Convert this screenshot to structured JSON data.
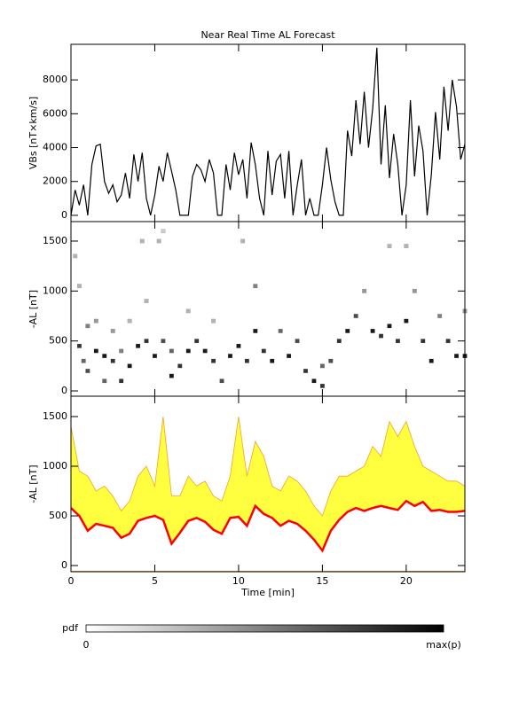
{
  "chart_data": [
    {
      "type": "line",
      "title": "Near Real Time AL Forecast",
      "y_label": "VBs [nT×km/s]",
      "xlim": [
        0,
        23.5
      ],
      "ylim": [
        -370,
        10100
      ],
      "xticks": [
        0,
        5,
        10,
        15,
        20
      ],
      "yticks": [
        0,
        2000,
        4000,
        6000,
        8000
      ],
      "show_xtick_labels": false,
      "x": [
        0,
        0.25,
        0.5,
        0.75,
        1,
        1.25,
        1.5,
        1.75,
        2,
        2.25,
        2.5,
        2.75,
        3,
        3.25,
        3.5,
        3.75,
        4,
        4.25,
        4.5,
        4.75,
        5,
        5.25,
        5.5,
        5.75,
        6,
        6.25,
        6.5,
        6.75,
        7,
        7.25,
        7.5,
        7.75,
        8,
        8.25,
        8.5,
        8.75,
        9,
        9.25,
        9.5,
        9.75,
        10,
        10.25,
        10.5,
        10.75,
        11,
        11.25,
        11.5,
        11.75,
        12,
        12.25,
        12.5,
        12.75,
        13,
        13.25,
        13.5,
        13.75,
        14,
        14.25,
        14.5,
        14.75,
        15,
        15.25,
        15.5,
        15.75,
        16,
        16.25,
        16.5,
        16.75,
        17,
        17.25,
        17.5,
        17.75,
        18,
        18.25,
        18.5,
        18.75,
        19,
        19.25,
        19.5,
        19.75,
        20,
        20.25,
        20.5,
        20.75,
        21,
        21.25,
        21.5,
        21.75,
        22,
        22.25,
        22.5,
        22.75,
        23,
        23.25,
        23.5
      ],
      "series": [
        {
          "color": "#000000",
          "values": [
            0,
            1500,
            600,
            1800,
            0,
            3000,
            4100,
            4200,
            2000,
            1300,
            1800,
            800,
            1200,
            2500,
            1000,
            3600,
            2000,
            3700,
            1000,
            0,
            1200,
            2900,
            2000,
            3700,
            2600,
            1500,
            0,
            0,
            0,
            2300,
            3000,
            2700,
            2000,
            3300,
            2500,
            0,
            0,
            3000,
            1500,
            3700,
            2400,
            3300,
            1000,
            4300,
            3000,
            1000,
            0,
            3800,
            1200,
            3200,
            3600,
            1000,
            3800,
            0,
            1800,
            3300,
            0,
            1000,
            0,
            0,
            1800,
            4000,
            2100,
            800,
            0,
            0,
            5000,
            3500,
            6800,
            4200,
            7300,
            4000,
            6300,
            9900,
            3000,
            6500,
            2200,
            4800,
            3000,
            0,
            1800,
            6800,
            2300,
            5300,
            3800,
            0,
            2400,
            6100,
            3300,
            7600,
            5000,
            8000,
            6400,
            3300,
            4200
          ]
        }
      ]
    },
    {
      "type": "heatmap",
      "y_label": "-AL [nT]",
      "xlim": [
        0,
        23.5
      ],
      "ylim": [
        -53,
        1695
      ],
      "xticks": [
        0,
        5,
        10,
        15,
        20
      ],
      "yticks": [
        0,
        500,
        1000,
        1500
      ],
      "show_xtick_labels": false,
      "color": "#000000",
      "points": [
        [
          0.25,
          1350,
          0.3
        ],
        [
          0.5,
          1050,
          0.3
        ],
        [
          0.5,
          450,
          0.8
        ],
        [
          0.75,
          300,
          0.6
        ],
        [
          1,
          650,
          0.5
        ],
        [
          1,
          200,
          0.7
        ],
        [
          1.5,
          400,
          0.9
        ],
        [
          1.5,
          700,
          0.4
        ],
        [
          2,
          350,
          0.9
        ],
        [
          2,
          100,
          0.6
        ],
        [
          2.5,
          300,
          0.8
        ],
        [
          2.5,
          600,
          0.4
        ],
        [
          3,
          100,
          0.8
        ],
        [
          3,
          400,
          0.5
        ],
        [
          3.5,
          250,
          0.9
        ],
        [
          3.5,
          700,
          0.3
        ],
        [
          4,
          450,
          0.9
        ],
        [
          4.25,
          1500,
          0.3
        ],
        [
          4.5,
          500,
          0.8
        ],
        [
          4.5,
          900,
          0.3
        ],
        [
          5,
          350,
          0.9
        ],
        [
          5.25,
          1500,
          0.3
        ],
        [
          5.5,
          1600,
          0.2
        ],
        [
          5.5,
          500,
          0.7
        ],
        [
          6,
          150,
          0.9
        ],
        [
          6,
          400,
          0.6
        ],
        [
          6.5,
          250,
          0.8
        ],
        [
          7,
          400,
          0.9
        ],
        [
          7,
          800,
          0.3
        ],
        [
          7.5,
          500,
          0.8
        ],
        [
          8,
          400,
          0.9
        ],
        [
          8.5,
          300,
          0.8
        ],
        [
          8.5,
          700,
          0.3
        ],
        [
          9,
          100,
          0.7
        ],
        [
          9.5,
          350,
          0.9
        ],
        [
          10,
          450,
          0.9
        ],
        [
          10.25,
          1500,
          0.3
        ],
        [
          10.5,
          300,
          0.8
        ],
        [
          11,
          1050,
          0.5
        ],
        [
          11,
          600,
          0.9
        ],
        [
          11.5,
          400,
          0.8
        ],
        [
          12,
          300,
          0.9
        ],
        [
          12.5,
          600,
          0.6
        ],
        [
          13,
          350,
          0.9
        ],
        [
          13.5,
          500,
          0.7
        ],
        [
          14,
          200,
          0.8
        ],
        [
          14.5,
          100,
          0.9
        ],
        [
          15,
          50,
          0.8
        ],
        [
          15,
          250,
          0.6
        ],
        [
          15.5,
          300,
          0.7
        ],
        [
          16,
          500,
          0.8
        ],
        [
          16.5,
          600,
          0.9
        ],
        [
          17,
          750,
          0.7
        ],
        [
          17.5,
          1000,
          0.4
        ],
        [
          18,
          600,
          0.9
        ],
        [
          18.5,
          550,
          0.8
        ],
        [
          19,
          1450,
          0.3
        ],
        [
          19,
          650,
          0.9
        ],
        [
          19.5,
          500,
          0.8
        ],
        [
          20,
          1450,
          0.3
        ],
        [
          20,
          700,
          0.9
        ],
        [
          20.5,
          1000,
          0.4
        ],
        [
          21,
          500,
          0.8
        ],
        [
          21.5,
          300,
          0.9
        ],
        [
          22,
          750,
          0.5
        ],
        [
          22.5,
          500,
          0.8
        ],
        [
          23,
          350,
          0.9
        ],
        [
          23.5,
          800,
          0.4
        ],
        [
          23.5,
          350,
          0.9
        ]
      ],
      "colorbar": {
        "label": "pdf",
        "min_label": "0",
        "max_label": "max(p)"
      }
    },
    {
      "type": "band",
      "y_label": "-AL [nT]",
      "x_label": "Time [min]",
      "xlim": [
        0,
        23.5
      ],
      "ylim": [
        -62,
        1705
      ],
      "xticks": [
        0,
        5,
        10,
        15,
        20
      ],
      "yticks": [
        0,
        500,
        1000,
        1500
      ],
      "show_xtick_labels": true,
      "x": [
        0,
        0.5,
        1,
        1.5,
        2,
        2.5,
        3,
        3.5,
        4,
        4.5,
        5,
        5.5,
        6,
        6.5,
        7,
        7.5,
        8,
        8.5,
        9,
        9.5,
        10,
        10.5,
        11,
        11.5,
        12,
        12.5,
        13,
        13.5,
        14,
        14.5,
        15,
        15.5,
        16,
        16.5,
        17,
        17.5,
        18,
        18.5,
        19,
        19.5,
        20,
        20.5,
        21,
        21.5,
        22,
        22.5,
        23,
        23.5
      ],
      "series": [
        {
          "color": "#ffff40",
          "values": [
            1400,
            950,
            900,
            750,
            800,
            700,
            550,
            650,
            900,
            1000,
            800,
            1500,
            700,
            700,
            900,
            800,
            850,
            700,
            650,
            900,
            1500,
            900,
            1250,
            1100,
            800,
            750,
            900,
            850,
            750,
            600,
            500,
            750,
            900,
            900,
            950,
            1000,
            1200,
            1100,
            1450,
            1300,
            1450,
            1200,
            1000,
            950,
            900,
            850,
            850,
            800
          ]
        },
        {
          "color": "#ff0000",
          "values": [
            580,
            500,
            350,
            420,
            400,
            380,
            280,
            320,
            450,
            480,
            500,
            460,
            220,
            330,
            450,
            480,
            440,
            360,
            320,
            480,
            490,
            400,
            600,
            520,
            480,
            400,
            450,
            420,
            350,
            260,
            150,
            350,
            460,
            540,
            580,
            550,
            580,
            600,
            580,
            560,
            650,
            600,
            640,
            550,
            560,
            540,
            540,
            550
          ]
        }
      ]
    }
  ]
}
